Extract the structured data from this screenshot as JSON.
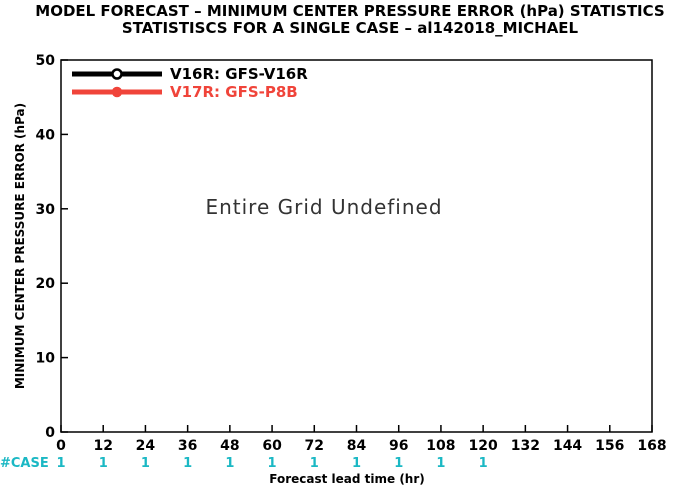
{
  "chart_data": {
    "type": "line",
    "title": "MODEL FORECAST – MINIMUM CENTER PRESSURE ERROR (hPa) STATISTICS",
    "subtitle": "STATISTISCS FOR A SINGLE CASE – al142018_MICHAEL",
    "xlabel": "Forecast lead time (hr)",
    "ylabel": "MINIMUM CENTER PRESSURE ERROR (hPa)",
    "xlim": [
      0,
      168
    ],
    "ylim": [
      0,
      50
    ],
    "x_ticks": [
      "0",
      "12",
      "24",
      "36",
      "48",
      "60",
      "72",
      "84",
      "96",
      "108",
      "120",
      "132",
      "144",
      "156",
      "168"
    ],
    "y_ticks": [
      "0",
      "10",
      "20",
      "30",
      "40",
      "50"
    ],
    "grid": false,
    "legend_position": "top-left",
    "series": [
      {
        "name": "V16R: GFS-V16R",
        "color": "#000000",
        "values": []
      },
      {
        "name": "V17R: GFS-P8B",
        "color": "#f0443a",
        "values": []
      }
    ],
    "annotation": "Entire Grid Undefined",
    "case_label": "#CASE",
    "case_color": "#1bb8c4",
    "case_counts": [
      {
        "x": 0,
        "n": "1"
      },
      {
        "x": 12,
        "n": "1"
      },
      {
        "x": 24,
        "n": "1"
      },
      {
        "x": 36,
        "n": "1"
      },
      {
        "x": 48,
        "n": "1"
      },
      {
        "x": 60,
        "n": "1"
      },
      {
        "x": 72,
        "n": "1"
      },
      {
        "x": 84,
        "n": "1"
      },
      {
        "x": 96,
        "n": "1"
      },
      {
        "x": 108,
        "n": "1"
      },
      {
        "x": 120,
        "n": "1"
      }
    ]
  }
}
